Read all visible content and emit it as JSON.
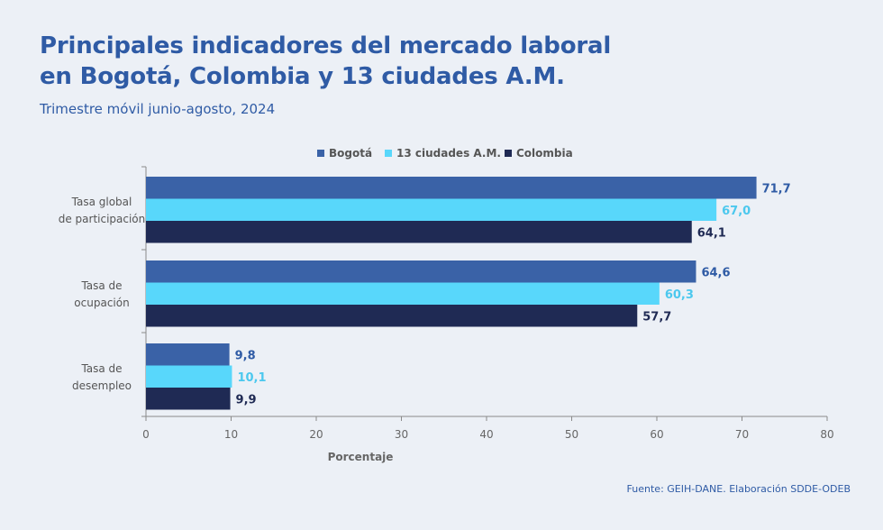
{
  "title_line1": "Principales indicadores del mercado laboral",
  "title_line2": "en Bogotá, Colombia y 13 ciudades A.M.",
  "subtitle": "Trimestre móvil junio-agosto, 2024",
  "source": "Fuente: GEIH-DANE. Elaboración SDDE-ODEB",
  "chart_data": {
    "type": "bar",
    "orientation": "horizontal",
    "categories": [
      [
        "Tasa global",
        "de participación"
      ],
      [
        "Tasa de",
        "ocupación"
      ],
      [
        "Tasa de",
        "desempleo"
      ]
    ],
    "series": [
      {
        "name": "Bogotá",
        "color": "#3a62a7",
        "label_color": "#2f5ba5",
        "values": [
          71.7,
          64.6,
          9.8
        ],
        "labels": [
          "71,7",
          "64,6",
          "9,8"
        ]
      },
      {
        "name": "13 ciudades A.M.",
        "color": "#58d7fb",
        "label_color": "#4cc8ee",
        "values": [
          67.0,
          60.3,
          10.1
        ],
        "labels": [
          "67,0",
          "60,3",
          "10,1"
        ]
      },
      {
        "name": "Colombia",
        "color": "#1f2a54",
        "label_color": "#1f2a54",
        "values": [
          64.1,
          57.7,
          9.9
        ],
        "labels": [
          "64,1",
          "57,7",
          "9,9"
        ]
      }
    ],
    "xlabel": "Porcentaje",
    "ylabel": "",
    "xlim": [
      0,
      80
    ],
    "xticks": [
      0,
      10,
      20,
      30,
      40,
      50,
      60,
      70,
      80
    ],
    "grid": false,
    "legend": "top-center"
  }
}
